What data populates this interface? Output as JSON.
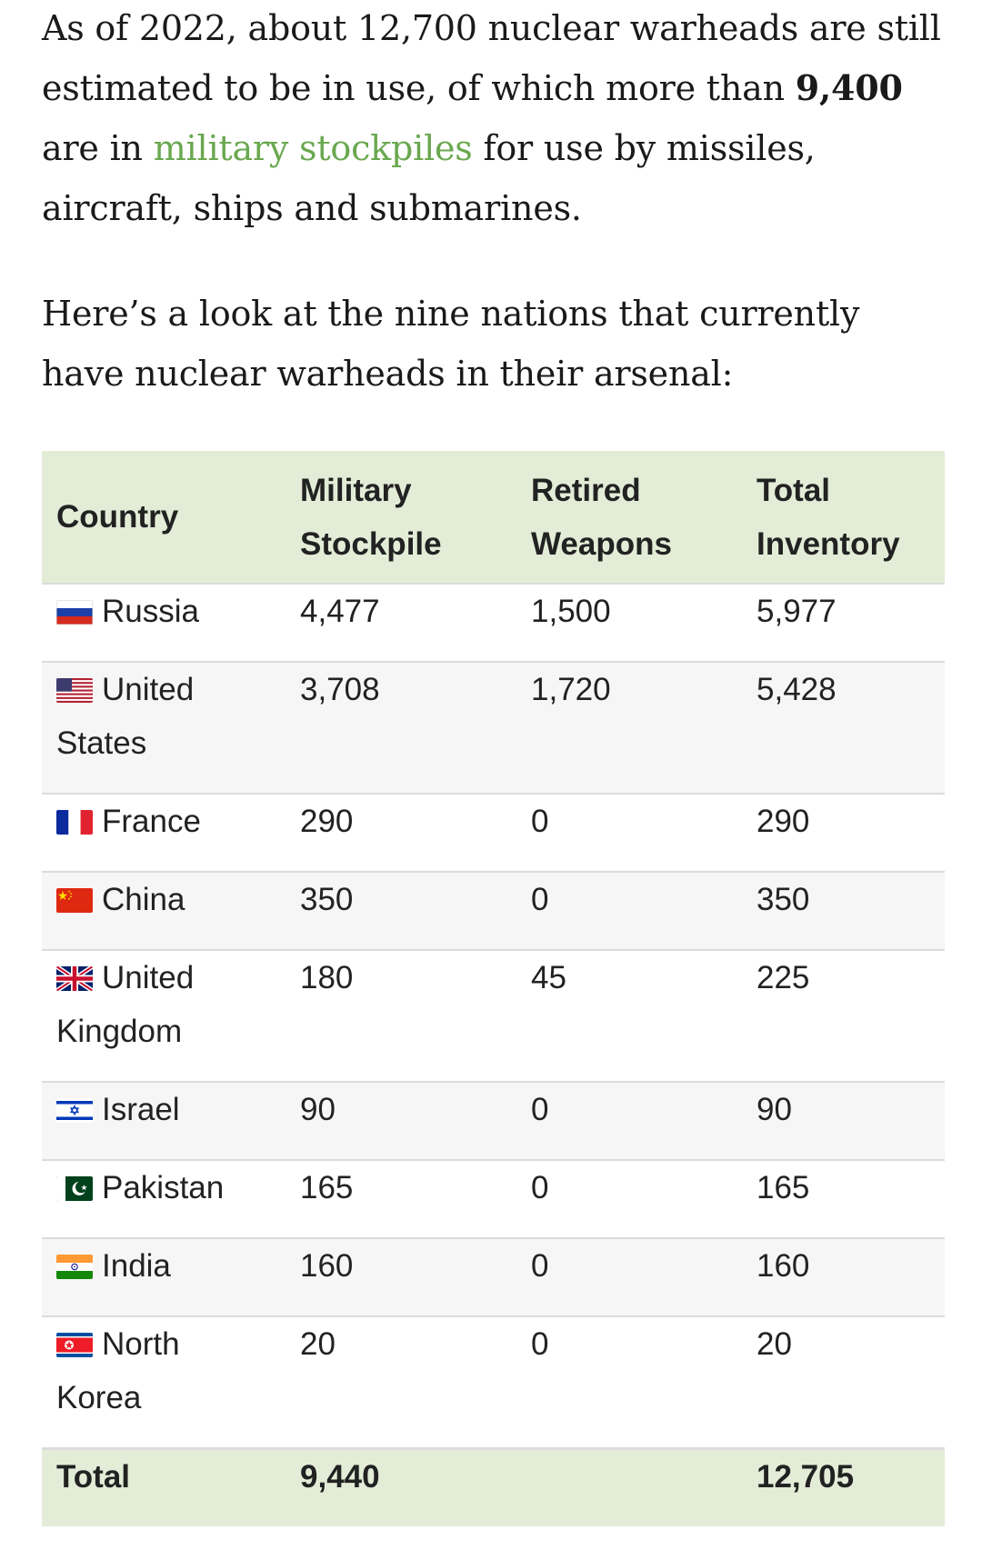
{
  "intro": {
    "p1_a": "As of 2022, about 12,700 nuclear warheads are still estimated to be in use, of which more than ",
    "p1_bold": "9,400",
    "p1_b": " are in ",
    "p1_link": "military stockpiles",
    "p1_c": " for use by missiles, aircraft, ships and submarines.",
    "p2": "Here’s a look at the nine nations that currently have nuclear warheads in their arsenal:"
  },
  "colors": {
    "link": "#6aa84f",
    "header_bg": "#e3ecd7",
    "row_alt_bg": "#f6f6f6"
  },
  "table": {
    "headers": [
      "Country",
      "Military Stockpile",
      "Retired Weapons",
      "Total Inventory"
    ],
    "rows": [
      {
        "country": "Russia",
        "flag": "russia-flag-icon",
        "military": "4,477",
        "retired": "1,500",
        "total": "5,977"
      },
      {
        "country": "United States",
        "flag": "usa-flag-icon",
        "military": "3,708",
        "retired": "1,720",
        "total": "5,428"
      },
      {
        "country": "France",
        "flag": "france-flag-icon",
        "military": "290",
        "retired": "0",
        "total": "290"
      },
      {
        "country": "China",
        "flag": "china-flag-icon",
        "military": "350",
        "retired": "0",
        "total": "350"
      },
      {
        "country": "United Kingdom",
        "flag": "uk-flag-icon",
        "military": "180",
        "retired": "45",
        "total": "225"
      },
      {
        "country": "Israel",
        "flag": "israel-flag-icon",
        "military": "90",
        "retired": "0",
        "total": "90"
      },
      {
        "country": "Pakistan",
        "flag": "pakistan-flag-icon",
        "military": "165",
        "retired": "0",
        "total": "165"
      },
      {
        "country": "India",
        "flag": "india-flag-icon",
        "military": "160",
        "retired": "0",
        "total": "160"
      },
      {
        "country": "North Korea",
        "flag": "north-korea-flag-icon",
        "military": "20",
        "retired": "0",
        "total": "20"
      }
    ],
    "footer": {
      "label": "Total",
      "military": "9,440",
      "retired": "",
      "total": "12,705"
    }
  }
}
